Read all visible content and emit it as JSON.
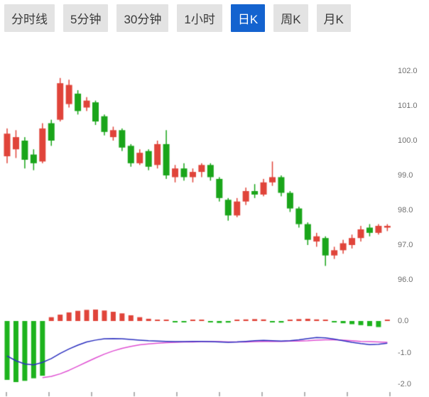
{
  "tabs": {
    "items": [
      {
        "label": "分时线",
        "active": false
      },
      {
        "label": "5分钟",
        "active": false
      },
      {
        "label": "30分钟",
        "active": false
      },
      {
        "label": "1小时",
        "active": false
      },
      {
        "label": "日K",
        "active": true
      },
      {
        "label": "周K",
        "active": false
      },
      {
        "label": "月K",
        "active": false
      }
    ]
  },
  "chart_data": {
    "type": "candlestick",
    "title": "",
    "main": {
      "y_ticks": [
        "102.0",
        "101.0",
        "100.0",
        "99.0",
        "98.0",
        "97.0",
        "96.0"
      ],
      "ylim": [
        95.8,
        102.3
      ],
      "candles_ohlc": [
        [
          99.55,
          100.35,
          99.35,
          100.2
        ],
        [
          99.75,
          100.3,
          99.5,
          100.1
        ],
        [
          100.0,
          100.1,
          99.2,
          99.45
        ],
        [
          99.6,
          99.75,
          99.15,
          99.35
        ],
        [
          99.4,
          100.5,
          99.35,
          100.35
        ],
        [
          100.5,
          100.6,
          99.85,
          100.0
        ],
        [
          100.6,
          101.8,
          100.55,
          101.65
        ],
        [
          101.05,
          101.75,
          100.95,
          101.6
        ],
        [
          101.35,
          101.45,
          100.75,
          100.85
        ],
        [
          100.95,
          101.25,
          100.85,
          101.15
        ],
        [
          101.1,
          101.15,
          100.45,
          100.55
        ],
        [
          100.7,
          100.75,
          100.15,
          100.25
        ],
        [
          100.1,
          100.4,
          100.0,
          100.3
        ],
        [
          100.3,
          100.35,
          99.7,
          99.8
        ],
        [
          99.85,
          99.9,
          99.25,
          99.35
        ],
        [
          99.35,
          99.75,
          99.3,
          99.65
        ],
        [
          99.7,
          99.75,
          99.15,
          99.25
        ],
        [
          99.3,
          100.0,
          99.2,
          99.9
        ],
        [
          99.9,
          100.3,
          98.9,
          99.0
        ],
        [
          98.95,
          99.3,
          98.8,
          99.2
        ],
        [
          99.2,
          99.35,
          98.85,
          98.95
        ],
        [
          98.95,
          99.2,
          98.8,
          99.1
        ],
        [
          99.1,
          99.35,
          98.95,
          99.3
        ],
        [
          99.3,
          99.35,
          98.85,
          98.95
        ],
        [
          98.9,
          98.95,
          98.25,
          98.35
        ],
        [
          98.3,
          98.35,
          97.7,
          97.85
        ],
        [
          97.85,
          98.35,
          97.8,
          98.25
        ],
        [
          98.25,
          98.65,
          98.15,
          98.55
        ],
        [
          98.55,
          98.75,
          98.35,
          98.45
        ],
        [
          98.45,
          98.9,
          98.4,
          98.8
        ],
        [
          98.8,
          99.4,
          98.7,
          98.95
        ],
        [
          98.95,
          99.0,
          98.4,
          98.5
        ],
        [
          98.5,
          98.55,
          97.95,
          98.05
        ],
        [
          98.05,
          98.1,
          97.5,
          97.6
        ],
        [
          97.6,
          97.65,
          97.0,
          97.15
        ],
        [
          97.1,
          97.35,
          96.95,
          97.25
        ],
        [
          97.2,
          97.25,
          96.4,
          96.7
        ],
        [
          96.7,
          96.95,
          96.6,
          96.85
        ],
        [
          96.85,
          97.15,
          96.75,
          97.05
        ],
        [
          97.0,
          97.3,
          96.9,
          97.2
        ],
        [
          97.2,
          97.55,
          97.1,
          97.45
        ],
        [
          97.5,
          97.6,
          97.25,
          97.35
        ],
        [
          97.35,
          97.6,
          97.3,
          97.55
        ],
        [
          97.5,
          97.6,
          97.4,
          97.55
        ]
      ]
    },
    "macd": {
      "y_ticks": [
        "0.0",
        "-1.0",
        "-2.0"
      ],
      "ylim": [
        -2.1,
        0.5
      ],
      "histogram": [
        -1.85,
        -1.92,
        -1.88,
        -1.8,
        -1.72,
        0.12,
        0.2,
        0.27,
        0.32,
        0.35,
        0.36,
        0.33,
        0.29,
        0.24,
        0.18,
        0.12,
        0.07,
        0.04,
        0.03,
        -0.03,
        -0.04,
        0.03,
        0.04,
        -0.04,
        -0.06,
        -0.05,
        0.03,
        0.05,
        0.06,
        0.05,
        -0.04,
        -0.05,
        0.04,
        0.06,
        0.07,
        0.05,
        0.03,
        -0.04,
        -0.07,
        -0.1,
        -0.13,
        -0.16,
        -0.19,
        0.04
      ],
      "dif": [
        -1.1,
        -1.25,
        -1.35,
        -1.38,
        -1.3,
        -1.18,
        -1.02,
        -0.88,
        -0.76,
        -0.66,
        -0.6,
        -0.56,
        -0.55,
        -0.56,
        -0.58,
        -0.6,
        -0.62,
        -0.63,
        -0.64,
        -0.65,
        -0.65,
        -0.64,
        -0.64,
        -0.65,
        -0.66,
        -0.67,
        -0.66,
        -0.64,
        -0.62,
        -0.61,
        -0.62,
        -0.63,
        -0.62,
        -0.59,
        -0.55,
        -0.52,
        -0.53,
        -0.57,
        -0.62,
        -0.67,
        -0.71,
        -0.74,
        -0.73,
        -0.7
      ],
      "dea": [
        null,
        null,
        null,
        null,
        -1.78,
        -1.74,
        -1.66,
        -1.55,
        -1.42,
        -1.29,
        -1.16,
        -1.04,
        -0.94,
        -0.86,
        -0.8,
        -0.75,
        -0.72,
        -0.7,
        -0.68,
        -0.67,
        -0.66,
        -0.66,
        -0.65,
        -0.65,
        -0.65,
        -0.66,
        -0.66,
        -0.66,
        -0.65,
        -0.64,
        -0.64,
        -0.64,
        -0.63,
        -0.63,
        -0.62,
        -0.6,
        -0.59,
        -0.59,
        -0.6,
        -0.62,
        -0.64,
        -0.65,
        -0.66,
        -0.67
      ]
    },
    "colors": {
      "up": "#e0443a",
      "down": "#1aa51a",
      "hist_pos": "#e0443a",
      "hist_neg": "#1db31d",
      "dif_line": "#2b2fbf",
      "dea_line": "#df4fd2",
      "axis_text": "#707070",
      "tick_mark": "#b0b0b0",
      "tab_active_bg": "#1463cf",
      "tab_bg": "#e3e3e3"
    }
  }
}
